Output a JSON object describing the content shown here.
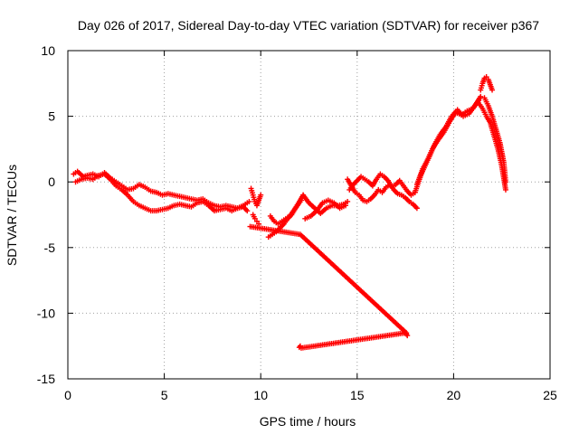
{
  "chart_data": {
    "type": "scatter",
    "title": "Day 026 of 2017, Sidereal Day-to-day VTEC variation (SDTVAR) for receiver p367",
    "xlabel": "GPS time / hours",
    "ylabel": "SDTVAR / TECUs",
    "xlim": [
      0,
      25
    ],
    "ylim": [
      -15,
      10
    ],
    "xticks": [
      0,
      5,
      10,
      15,
      20,
      25
    ],
    "yticks": [
      -15,
      -10,
      -5,
      0,
      5,
      10
    ],
    "grid": true,
    "marker": "+",
    "series": [
      {
        "name": "SDTVAR",
        "color": "#ff0000",
        "segments": [
          {
            "x": [
              0.3,
              0.5,
              0.8,
              1.0,
              1.3,
              1.6,
              1.9,
              2.2,
              2.5,
              2.8,
              3.1,
              3.4,
              3.7,
              4.0,
              4.3,
              4.6,
              4.9,
              5.2,
              5.5,
              5.8,
              6.1,
              6.4,
              6.7,
              7.0,
              7.3,
              7.6,
              7.9,
              8.2,
              8.5,
              8.8,
              9.1,
              9.4
            ],
            "y": [
              0.6,
              0.8,
              0.4,
              0.5,
              0.6,
              0.4,
              0.7,
              0.3,
              0.0,
              -0.3,
              -0.6,
              -0.5,
              -0.2,
              -0.4,
              -0.7,
              -0.8,
              -1.0,
              -0.9,
              -1.0,
              -1.1,
              -1.2,
              -1.3,
              -1.4,
              -1.3,
              -1.6,
              -1.8,
              -1.9,
              -1.8,
              -1.9,
              -2.0,
              -1.8,
              -1.5
            ]
          },
          {
            "x": [
              0.4,
              0.7,
              1.0,
              1.3,
              1.6,
              1.9,
              2.2,
              2.5,
              2.8,
              3.1,
              3.4,
              3.7,
              4.0,
              4.3,
              4.6,
              4.9,
              5.2,
              5.5,
              5.8,
              6.1,
              6.4,
              6.7,
              7.0,
              7.3,
              7.6,
              7.9,
              8.2,
              8.5,
              8.8,
              9.1,
              9.3
            ],
            "y": [
              0.0,
              0.2,
              0.3,
              0.2,
              0.5,
              0.6,
              0.2,
              -0.3,
              -0.6,
              -1.0,
              -1.5,
              -1.8,
              -2.0,
              -2.2,
              -2.2,
              -2.1,
              -2.0,
              -1.8,
              -1.7,
              -1.8,
              -1.9,
              -1.6,
              -1.5,
              -1.8,
              -2.2,
              -2.1,
              -2.0,
              -2.2,
              -2.0,
              -1.9,
              -2.2
            ]
          },
          {
            "x": [
              9.5,
              9.6,
              9.7,
              9.8,
              9.9,
              10.0
            ],
            "y": [
              -0.5,
              -1.0,
              -1.5,
              -1.8,
              -1.4,
              -1.0
            ]
          },
          {
            "x": [
              9.6,
              9.7,
              9.8,
              9.9
            ],
            "y": [
              -2.5,
              -2.8,
              -3.0,
              -3.2
            ]
          },
          {
            "x": [
              10.4,
              10.6,
              10.8,
              11.0,
              11.2,
              11.4,
              11.6,
              11.8,
              12.0,
              12.2
            ],
            "y": [
              -4.2,
              -4.0,
              -3.8,
              -3.5,
              -3.2,
              -2.8,
              -2.5,
              -2.0,
              -1.5,
              -1.0
            ]
          },
          {
            "x": [
              10.5,
              10.7,
              10.9,
              11.1,
              11.3,
              11.5,
              11.7,
              11.9,
              12.1
            ],
            "y": [
              -2.6,
              -3.0,
              -3.2,
              -3.0,
              -2.8,
              -2.6,
              -2.2,
              -1.8,
              -1.4
            ]
          },
          {
            "x": [
              12.2,
              12.5,
              12.8,
              13.1,
              13.4,
              13.7,
              14.0,
              14.3,
              14.5
            ],
            "y": [
              -1.0,
              -1.6,
              -2.0,
              -2.4,
              -2.0,
              -1.8,
              -1.8,
              -1.7,
              -1.5
            ]
          },
          {
            "x": [
              12.3,
              12.6,
              12.9,
              13.2,
              13.5,
              13.8,
              14.1,
              14.4
            ],
            "y": [
              -2.8,
              -2.6,
              -2.2,
              -1.6,
              -1.4,
              -1.6,
              -2.0,
              -1.8
            ]
          },
          {
            "x": [
              14.5,
              14.7,
              14.9,
              15.1,
              15.3,
              15.5,
              15.7,
              15.9,
              16.1,
              16.3,
              16.5,
              16.7,
              16.9,
              17.1,
              17.3,
              17.5,
              17.7,
              17.9,
              18.1
            ],
            "y": [
              0.2,
              -0.3,
              -0.8,
              -1.0,
              -1.4,
              -1.5,
              -1.3,
              -1.0,
              -0.6,
              -0.8,
              -0.4,
              -0.2,
              -0.6,
              -0.9,
              -1.0,
              -1.2,
              -1.5,
              -1.7,
              -2.0
            ]
          },
          {
            "x": [
              14.6,
              14.8,
              15.0,
              15.2,
              15.4,
              15.6,
              15.8,
              16.0,
              16.2,
              16.4,
              16.6,
              16.8,
              17.0,
              17.2,
              17.4,
              17.6,
              17.8,
              18.0
            ],
            "y": [
              -0.6,
              -0.2,
              0.1,
              0.4,
              0.2,
              0.0,
              -0.3,
              0.2,
              0.6,
              0.4,
              0.1,
              -0.4,
              -0.2,
              0.1,
              -0.3,
              -0.7,
              -1.0,
              -0.8
            ]
          },
          {
            "x": [
              18.0,
              18.3,
              18.6,
              18.9,
              19.2,
              19.5,
              19.8,
              20.1,
              20.4,
              20.7,
              21.0,
              21.3
            ],
            "y": [
              -0.8,
              0.5,
              1.5,
              2.5,
              3.2,
              3.8,
              4.6,
              5.3,
              5.1,
              5.4,
              5.6,
              6.2
            ]
          },
          {
            "x": [
              18.1,
              18.4,
              18.7,
              19.0,
              19.3,
              19.6,
              19.9,
              20.2,
              20.5,
              20.8,
              21.1,
              21.4
            ],
            "y": [
              -0.2,
              1.0,
              1.8,
              2.8,
              3.6,
              4.2,
              5.0,
              5.5,
              5.0,
              5.2,
              5.8,
              6.5
            ]
          },
          {
            "x": [
              21.4,
              21.5,
              21.6,
              21.7,
              21.8,
              21.9,
              22.0
            ],
            "y": [
              7.0,
              7.5,
              7.9,
              8.0,
              7.8,
              7.4,
              7.0
            ]
          },
          {
            "x": [
              21.3,
              21.5,
              21.7,
              21.9,
              22.1,
              22.3,
              22.5,
              22.7
            ],
            "y": [
              6.0,
              5.6,
              5.0,
              4.5,
              3.5,
              2.5,
              1.2,
              -0.6
            ]
          },
          {
            "x": [
              21.6,
              21.8,
              22.0,
              22.2,
              22.4,
              22.6,
              22.7
            ],
            "y": [
              6.4,
              5.8,
              5.0,
              4.0,
              3.0,
              1.5,
              0.0
            ]
          },
          {
            "x": [
              9.45,
              12.05,
              17.55
            ],
            "y": [
              -3.4,
              -4.0,
              -11.5
            ]
          },
          {
            "x": [
              12.0,
              12.05,
              12.1,
              17.5,
              17.55,
              17.6
            ],
            "y": [
              -12.6,
              -12.5,
              -12.65,
              -11.5,
              -11.6,
              -11.7
            ]
          }
        ]
      }
    ]
  }
}
